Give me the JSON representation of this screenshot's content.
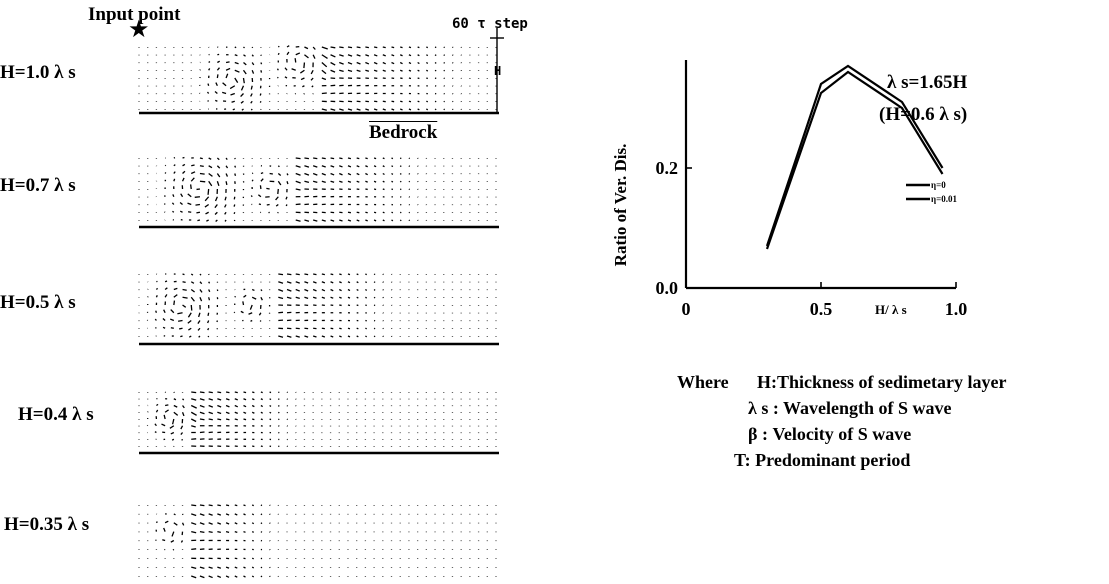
{
  "left_panel": {
    "input_point_label": "Input point",
    "step_label": "60 τ step",
    "h_marker_label": "H",
    "bedrock_label": "Bedrock",
    "rows": [
      {
        "label": "H=1.0 λ s"
      },
      {
        "label": "H=0.7 λ s"
      },
      {
        "label": "H=0.5 λ s"
      },
      {
        "label": "H=0.4 λ s"
      },
      {
        "label": "H=0.35 λ s"
      }
    ]
  },
  "chart_data": {
    "type": "line",
    "xlabel": "H/ λ s",
    "ylabel": "Ratio of Ver. Dis.",
    "x_ticks": [
      "0",
      "0.5",
      "1.0"
    ],
    "y_ticks": [
      "0.0",
      "0.2"
    ],
    "xlim": [
      0,
      1.0
    ],
    "ylim": [
      0,
      0.38
    ],
    "annotation_line1": "λ s=1.65H",
    "annotation_line2": "(H=0.6 λ s)",
    "series": [
      {
        "name": "η=0",
        "x": [
          0.3,
          0.5,
          0.6,
          0.8,
          0.95
        ],
        "y": [
          0.07,
          0.34,
          0.37,
          0.31,
          0.2
        ]
      },
      {
        "name": "η=0.01",
        "x": [
          0.3,
          0.5,
          0.6,
          0.8,
          0.95
        ],
        "y": [
          0.065,
          0.325,
          0.36,
          0.3,
          0.19
        ]
      }
    ]
  },
  "legend_text": {
    "where": "Where",
    "item1": "H:Thickness of sedimetary layer",
    "item2": "λ s : Wavelength of S wave",
    "item3": "β : Velocity of S wave",
    "item4": "T: Predominant period"
  }
}
